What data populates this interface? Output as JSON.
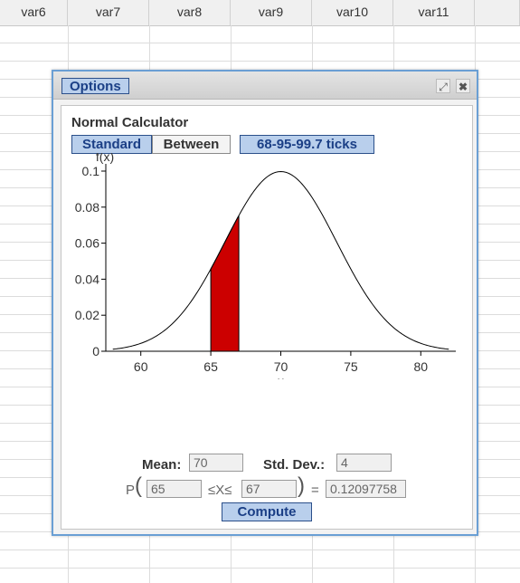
{
  "spreadsheet": {
    "columns": [
      "var6",
      "var7",
      "var8",
      "var9",
      "var10",
      "var11"
    ]
  },
  "dialog": {
    "options_label": "Options",
    "maximize_icon": "expand-icon",
    "close_icon": "close-icon"
  },
  "calculator": {
    "title": "Normal Calculator",
    "modes": [
      "Standard",
      "Between",
      "68-95-99.7 ticks"
    ],
    "active_mode": "Standard",
    "mean_label": "Mean:",
    "mean_value": "70",
    "sd_label": "Std. Dev.:",
    "sd_value": "4",
    "p_label": "P",
    "lower_value": "65",
    "between_label": "≤X≤",
    "upper_value": "67",
    "equals_label": "=",
    "result_value": "0.12097758",
    "compute_label": "Compute"
  },
  "chart_data": {
    "type": "area",
    "distribution": "normal",
    "mean": 70,
    "sd": 4,
    "shaded_interval": [
      65,
      67
    ],
    "shade_color": "#cc0000",
    "xlim": [
      57.5,
      82.5
    ],
    "ylim": [
      0,
      0.1
    ],
    "xticks": [
      "60",
      "65",
      "70",
      "75",
      "80"
    ],
    "yticks": [
      "0",
      "0.02",
      "0.04",
      "0.06",
      "0.08",
      "0.1"
    ],
    "xlabel": "x",
    "ylabel": "f(x)"
  }
}
